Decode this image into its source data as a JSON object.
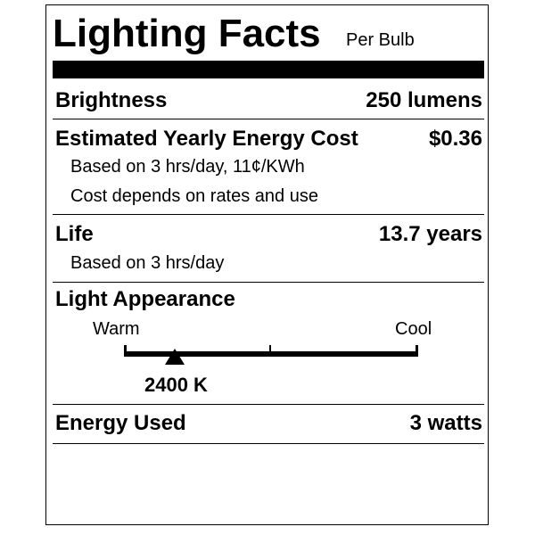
{
  "title": "Lighting Facts",
  "subtitle": "Per Bulb",
  "brightness": {
    "label": "Brightness",
    "value": "250 lumens"
  },
  "energy_cost": {
    "label": "Estimated Yearly Energy Cost",
    "value": "$0.36",
    "note1": "Based on 3 hrs/day, 11¢/KWh",
    "note2": "Cost depends on rates and use"
  },
  "life": {
    "label": "Life",
    "value": "13.7 years",
    "note": "Based on 3 hrs/day"
  },
  "appearance": {
    "label": "Light Appearance",
    "warm": "Warm",
    "cool": "Cool",
    "value": "2400 K",
    "scale_fraction": 0.17
  },
  "energy_used": {
    "label": "Energy Used",
    "value": "3 watts"
  }
}
